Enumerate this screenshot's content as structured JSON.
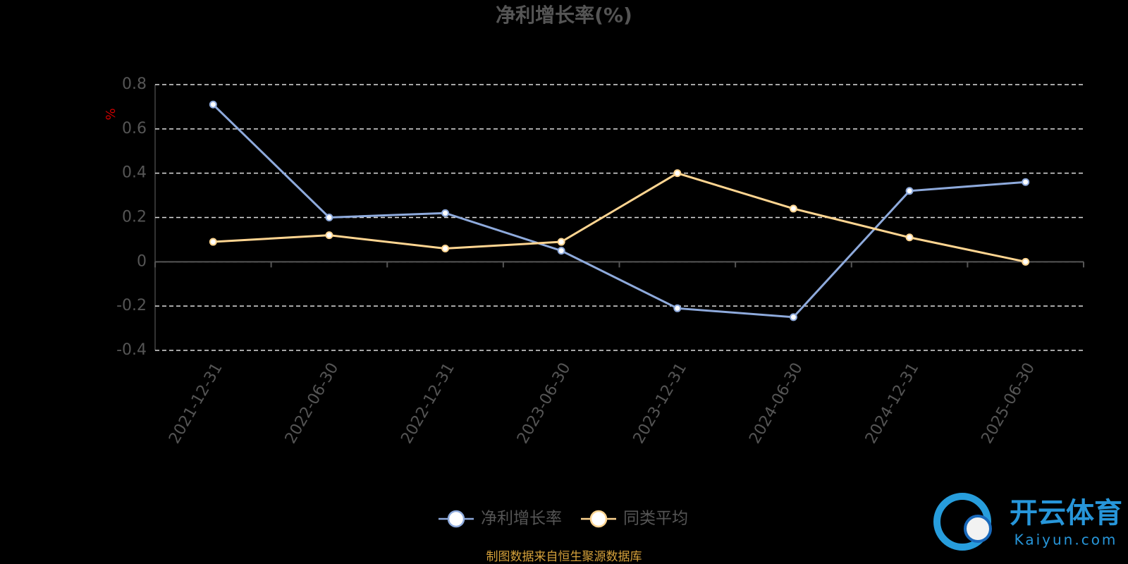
{
  "chart_data": {
    "type": "line",
    "title": "净利增长率(%)",
    "y_label": "%",
    "categories": [
      "2021-12-31",
      "2022-06-30",
      "2022-12-31",
      "2023-06-30",
      "2023-12-31",
      "2024-06-30",
      "2024-12-31",
      "2025-06-30"
    ],
    "series": [
      {
        "name": "净利增长率",
        "color": "#8eaadc",
        "values": [
          0.71,
          0.2,
          0.22,
          0.05,
          -0.21,
          -0.25,
          0.32,
          0.36
        ]
      },
      {
        "name": "同类平均",
        "color": "#ffd591",
        "values": [
          0.09,
          0.12,
          0.06,
          0.09,
          0.4,
          0.24,
          0.11,
          0.0
        ]
      }
    ],
    "ylim": [
      -0.4,
      0.8
    ],
    "yticks": [
      -0.4,
      -0.2,
      0,
      0.2,
      0.4,
      0.6,
      0.8
    ],
    "grid": true,
    "legend": "bottom",
    "source": "制图数据来自恒生聚源数据库"
  },
  "watermark": {
    "brand": "开云体育",
    "url": "Kaiyun.com"
  }
}
